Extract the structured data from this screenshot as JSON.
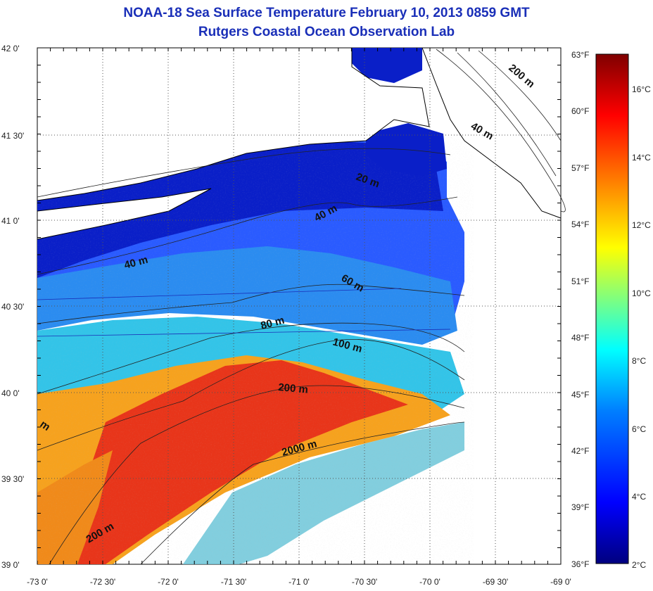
{
  "title": "NOAA-18 Sea Surface Temperature February 10, 2013 0859 GMT",
  "subtitle": "Rutgers Coastal Ocean Observation Lab",
  "map": {
    "lon_range": [
      -73,
      -69
    ],
    "lat_range": [
      39,
      42
    ],
    "lon_ticks": [
      "-73 0'",
      "-72 30'",
      "-72 0'",
      "-71 30'",
      "-71 0'",
      "-70 30'",
      "-70 0'",
      "-69 30'",
      "-69 0'"
    ],
    "lat_ticks": [
      "42 0'",
      "41 30'",
      "41 0'",
      "40 30'",
      "40 0'",
      "39 30'",
      "39 0'"
    ],
    "grid": true,
    "contour_labels": [
      "200 m",
      "40 m",
      "20 m",
      "40 m",
      "40 m",
      "60 m",
      "80 m",
      "100 m",
      "200 m",
      "2000 m",
      "200 m",
      "m"
    ]
  },
  "colorbar": {
    "fahrenheit_ticks": [
      "63°F",
      "60°F",
      "57°F",
      "54°F",
      "51°F",
      "48°F",
      "45°F",
      "42°F",
      "39°F",
      "36°F"
    ],
    "celsius_ticks": [
      "16°C",
      "14°C",
      "12°C",
      "10°C",
      "8°C",
      "6°C",
      "4°C",
      "2°C"
    ],
    "palette": [
      "#00007f",
      "#0000ff",
      "#007fff",
      "#00ffff",
      "#7fff7f",
      "#ffff00",
      "#ff7f00",
      "#ff0000",
      "#7f0000"
    ]
  }
}
